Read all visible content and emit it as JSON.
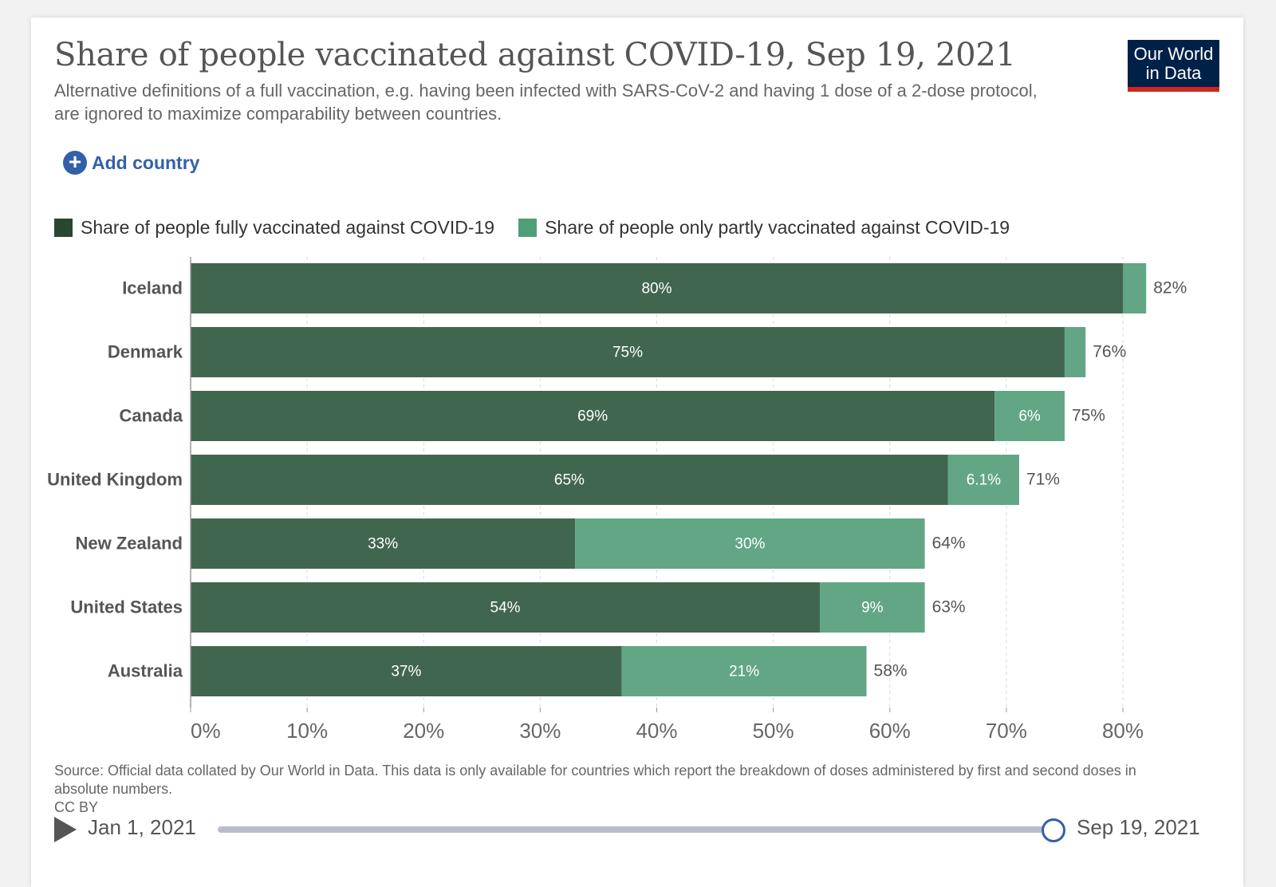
{
  "header": {
    "title": "Share of people vaccinated against COVID-19, Sep 19, 2021",
    "subtitle": "Alternative definitions of a full vaccination, e.g. having been infected with SARS-CoV-2 and having 1 dose of a 2-dose protocol, are ignored to maximize comparability between countries.",
    "logo_line1": "Our World",
    "logo_line2": "in Data",
    "add_country": "Add country"
  },
  "footer": {
    "source": "Source: Official data collated by Our World in Data. This data is only available for countries which report the breakdown of doses administered by first and second doses in absolute numbers.",
    "license": "CC BY"
  },
  "timeline": {
    "start": "Jan 1, 2021",
    "end": "Sep 19, 2021",
    "position": 1.0
  },
  "colors": {
    "fully": "#41664f",
    "partly": "#62a686",
    "logo_bg": "#002147",
    "logo_accent": "#ce261e",
    "link": "#3360a9"
  },
  "chart_data": {
    "type": "bar",
    "orientation": "horizontal",
    "stacked": true,
    "categories": [
      "Iceland",
      "Denmark",
      "Canada",
      "United Kingdom",
      "New Zealand",
      "United States",
      "Australia"
    ],
    "series": [
      {
        "name": "Share of people fully vaccinated against COVID-19",
        "values": [
          80,
          75,
          69,
          65,
          33,
          54,
          37
        ],
        "labels": [
          "80%",
          "75%",
          "69%",
          "65%",
          "33%",
          "54%",
          "37%"
        ]
      },
      {
        "name": "Share of people only partly vaccinated against COVID-19",
        "values": [
          2,
          1.8,
          6,
          6.1,
          30,
          9,
          21
        ],
        "labels": [
          "",
          "",
          "6%",
          "6.1%",
          "30%",
          "9%",
          "21%"
        ]
      }
    ],
    "totals": [
      "82%",
      "76%",
      "75%",
      "71%",
      "64%",
      "63%",
      "58%"
    ],
    "xlim": [
      0,
      80
    ],
    "xticks": [
      "0%",
      "10%",
      "20%",
      "30%",
      "40%",
      "50%",
      "60%",
      "70%",
      "80%"
    ],
    "grid": true,
    "legend": "top-left"
  }
}
